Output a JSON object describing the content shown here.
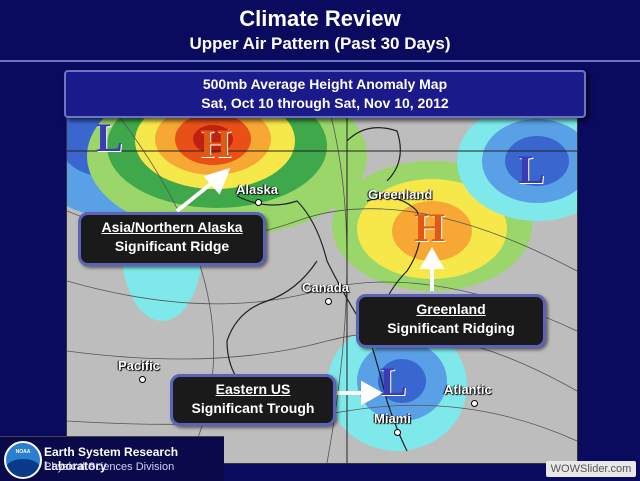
{
  "slide": {
    "title": "Climate Review",
    "subtitle": "Upper Air Pattern (Past 30 Days)"
  },
  "map": {
    "header_line1": "500mb Average Height Anomaly Map",
    "header_line2": "Sat, Oct 10 through Sat, Nov 10, 2012",
    "places": {
      "alaska": "Alaska",
      "greenland": "Greenland",
      "canada": "Canada",
      "pacific": "Pacific",
      "atlantic": "Atlantic",
      "miami": "Miami"
    },
    "centers": {
      "high_alaska": "H",
      "high_greenland": "H",
      "low_west": "L",
      "low_east": "L",
      "low_us": "L"
    }
  },
  "callouts": {
    "alaska": {
      "title": "Asia/Northern Alaska",
      "text": "Significant Ridge"
    },
    "greenland": {
      "title": "Greenland",
      "text": "Significant Ridging"
    },
    "eastern_us": {
      "title": "Eastern US",
      "text": "Significant Trough"
    }
  },
  "footer": {
    "lab_name": "Earth System Research Laboratory",
    "division": "Physical Sciences Division",
    "logo_text": "NOAA",
    "watermark": "WOWSlider.com"
  },
  "colors": {
    "background": "#0a0a5e",
    "ridge": "#e15a14",
    "trough": "#3b3bb5"
  }
}
